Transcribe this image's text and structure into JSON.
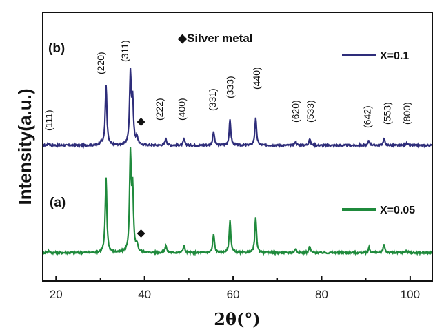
{
  "chart_data": {
    "type": "line",
    "xlabel": "2θ(°)",
    "ylabel": "Intensity(a.u.)",
    "xlim": [
      17,
      105
    ],
    "xticks": [
      20,
      40,
      60,
      80,
      100
    ],
    "y_ticks_shown": false,
    "panels": [
      "(b)",
      "(a)"
    ],
    "marker_legend": {
      "symbol": "◆",
      "label": "Silver metal"
    },
    "series": [
      {
        "name": "X=0.1",
        "panel": "(b)",
        "color": "#2e2d7a",
        "peaks": [
          [
            18.3,
            0.02
          ],
          [
            30.1,
            0.03
          ],
          [
            31.3,
            0.62
          ],
          [
            36.8,
            0.72
          ],
          [
            37.3,
            0.45
          ],
          [
            38.3,
            0.08
          ],
          [
            44.8,
            0.07
          ],
          [
            48.9,
            0.06
          ],
          [
            55.6,
            0.14
          ],
          [
            59.3,
            0.26
          ],
          [
            65.1,
            0.28
          ],
          [
            74.1,
            0.04
          ],
          [
            77.3,
            0.07
          ],
          [
            90.7,
            0.05
          ],
          [
            94.1,
            0.07
          ],
          [
            99.2,
            0.02
          ]
        ]
      },
      {
        "name": "X=0.05",
        "panel": "(a)",
        "color": "#1f8a3c",
        "peaks": [
          [
            18.3,
            0.02
          ],
          [
            31.3,
            0.72
          ],
          [
            36.8,
            0.92
          ],
          [
            37.3,
            0.58
          ],
          [
            38.3,
            0.07
          ],
          [
            44.8,
            0.07
          ],
          [
            48.9,
            0.07
          ],
          [
            55.6,
            0.18
          ],
          [
            59.3,
            0.31
          ],
          [
            65.1,
            0.34
          ],
          [
            74.1,
            0.04
          ],
          [
            77.3,
            0.06
          ],
          [
            90.7,
            0.05
          ],
          [
            94.1,
            0.08
          ],
          [
            99.2,
            0.02
          ]
        ]
      }
    ],
    "hkl_labels": [
      {
        "text": "(111)",
        "x": 18.3
      },
      {
        "text": "(220)",
        "x": 30.1
      },
      {
        "text": "(311)",
        "x": 35.5
      },
      {
        "text": "(222)",
        "x": 43.3
      },
      {
        "text": "(400)",
        "x": 48.4
      },
      {
        "text": "(331)",
        "x": 55.3
      },
      {
        "text": "(333)",
        "x": 59.3
      },
      {
        "text": "(440)",
        "x": 65.3
      },
      {
        "text": "(620)",
        "x": 74.1
      },
      {
        "text": "(533)",
        "x": 77.4
      },
      {
        "text": "(642)",
        "x": 90.3
      },
      {
        "text": "(553)",
        "x": 94.8
      },
      {
        "text": "(800)",
        "x": 99.2
      }
    ],
    "silver_markers": [
      {
        "panel": "(b)",
        "x": 39.2
      },
      {
        "panel": "(a)",
        "x": 39.2
      }
    ]
  }
}
